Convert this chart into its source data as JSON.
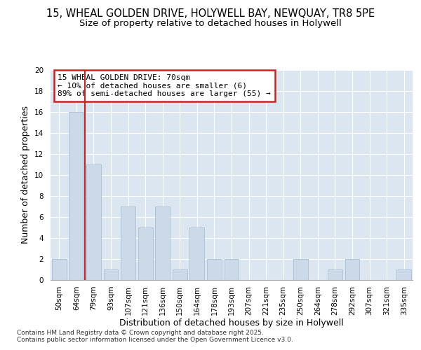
{
  "title1": "15, WHEAL GOLDEN DRIVE, HOLYWELL BAY, NEWQUAY, TR8 5PE",
  "title2": "Size of property relative to detached houses in Holywell",
  "xlabel": "Distribution of detached houses by size in Holywell",
  "ylabel": "Number of detached properties",
  "categories": [
    "50sqm",
    "64sqm",
    "79sqm",
    "93sqm",
    "107sqm",
    "121sqm",
    "136sqm",
    "150sqm",
    "164sqm",
    "178sqm",
    "193sqm",
    "207sqm",
    "221sqm",
    "235sqm",
    "250sqm",
    "264sqm",
    "278sqm",
    "292sqm",
    "307sqm",
    "321sqm",
    "335sqm"
  ],
  "values": [
    2,
    16,
    11,
    1,
    7,
    5,
    7,
    1,
    5,
    2,
    2,
    0,
    0,
    0,
    2,
    0,
    1,
    2,
    0,
    0,
    1
  ],
  "bar_color": "#ccd9e8",
  "bar_edge_color": "#a8bfd4",
  "vline_color": "#cc2222",
  "annotation_lines": [
    "15 WHEAL GOLDEN DRIVE: 70sqm",
    "← 10% of detached houses are smaller (6)",
    "89% of semi-detached houses are larger (55) →"
  ],
  "annotation_box_color": "#cc2222",
  "ylim": [
    0,
    20
  ],
  "yticks": [
    0,
    2,
    4,
    6,
    8,
    10,
    12,
    14,
    16,
    18,
    20
  ],
  "plot_bg_color": "#dce6f0",
  "grid_color": "#ffffff",
  "footer": "Contains HM Land Registry data © Crown copyright and database right 2025.\nContains public sector information licensed under the Open Government Licence v3.0.",
  "title1_fontsize": 10.5,
  "title2_fontsize": 9.5,
  "axis_label_fontsize": 9,
  "tick_fontsize": 7.5,
  "footer_fontsize": 6.5,
  "annot_fontsize": 8
}
